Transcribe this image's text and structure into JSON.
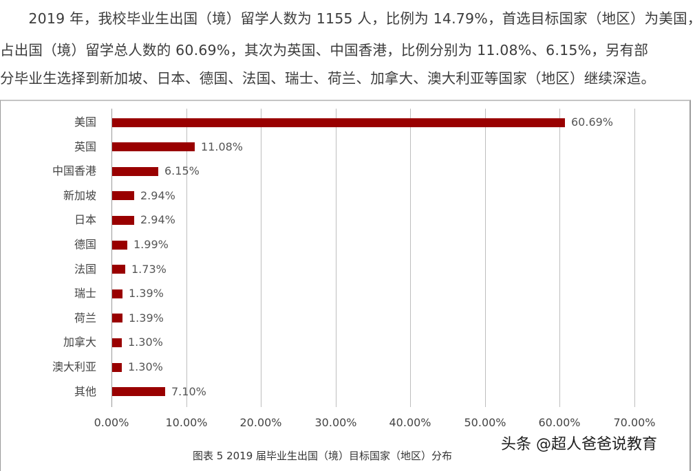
{
  "paragraph": {
    "lines": [
      "　　2019 年，我校毕业生出国（境）留学人数为 1155 人，比例为 14.79%，首选目标国家（地区）为美国，",
      "占出国（境）留学总人数的 60.69%，其次为英国、中国香港，比例分别为 11.08%、6.15%，另有部",
      "分毕业生选择到新加坡、日本、德国、法国、瑞士、荷兰、加拿大、澳大利亚等国家（地区）继续深造。"
    ]
  },
  "chart_data": {
    "type": "bar",
    "orientation": "horizontal",
    "title": "图表 5 2019 届毕业生出国（境）目标国家（地区）分布",
    "categories": [
      "美国",
      "英国",
      "中国香港",
      "新加坡",
      "日本",
      "德国",
      "法国",
      "瑞士",
      "荷兰",
      "加拿大",
      "澳大利亚",
      "其他"
    ],
    "values": [
      60.69,
      11.08,
      6.15,
      2.94,
      2.94,
      1.99,
      1.73,
      1.39,
      1.39,
      1.3,
      1.3,
      7.1
    ],
    "value_labels": [
      "60.69%",
      "11.08%",
      "6.15%",
      "2.94%",
      "2.94%",
      "1.99%",
      "1.73%",
      "1.39%",
      "1.39%",
      "1.30%",
      "1.30%",
      "7.10%"
    ],
    "xlabel": "",
    "ylabel": "",
    "xlim": [
      0,
      70
    ],
    "x_ticks": [
      "0.00%",
      "10.00%",
      "20.00%",
      "30.00%",
      "40.00%",
      "50.00%",
      "60.00%",
      "70.00%"
    ],
    "grid": "vertical",
    "legend": "none",
    "bar_color": "#990000"
  },
  "caption": "图表 5 2019 届毕业生出国（境）目标国家（地区）分布",
  "watermark": "头条 @超人爸爸说教育"
}
